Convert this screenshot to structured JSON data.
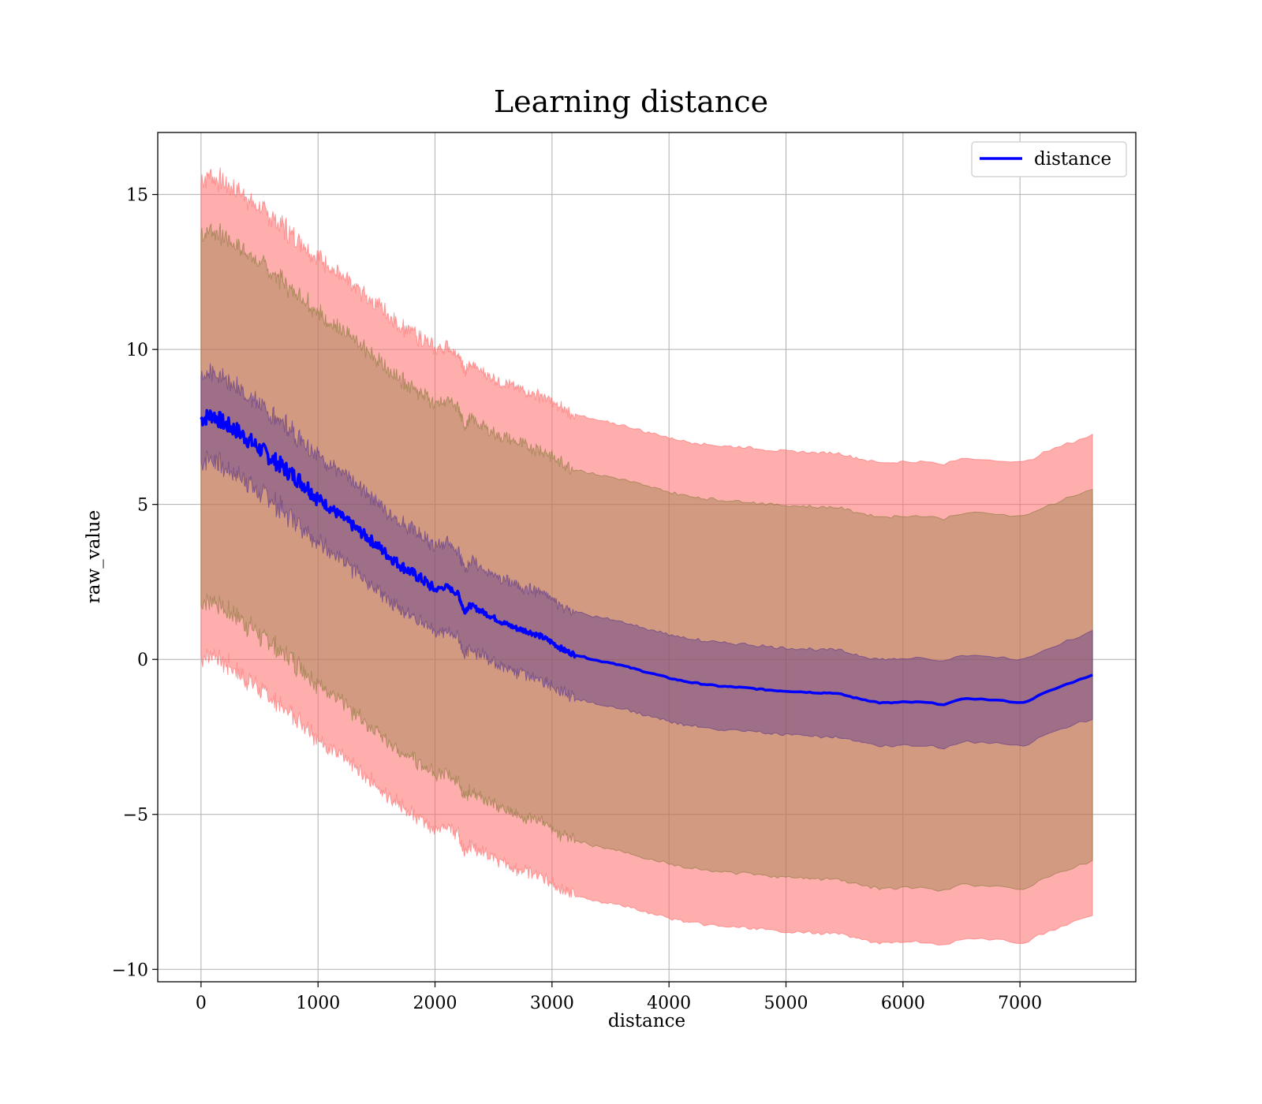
{
  "chart_data": {
    "type": "line",
    "title": "Learning distance",
    "xlabel": "distance",
    "ylabel": "raw_value",
    "xlim": [
      -370,
      7990
    ],
    "ylim": [
      -10.4,
      17.0
    ],
    "xticks": [
      0,
      1000,
      2000,
      3000,
      4000,
      5000,
      6000,
      7000
    ],
    "yticks": [
      -10,
      -5,
      0,
      5,
      10,
      15
    ],
    "xtick_labels": [
      "0",
      "1000",
      "2000",
      "3000",
      "4000",
      "5000",
      "6000",
      "7000"
    ],
    "ytick_labels": [
      "−10",
      "−5",
      "0",
      "5",
      "10",
      "15"
    ],
    "grid": true,
    "legend_position": "top-right",
    "series": [
      {
        "name": "distance",
        "color": "#0000ff",
        "x": [
          0,
          100,
          200,
          300,
          400,
          500,
          600,
          700,
          800,
          900,
          1000,
          1100,
          1200,
          1300,
          1400,
          1500,
          1600,
          1700,
          1800,
          1900,
          2000,
          2100,
          2200,
          2250,
          2300,
          2400,
          2500,
          2600,
          2700,
          2800,
          2900,
          3000,
          3100,
          3200,
          3300,
          3400,
          3500,
          3600,
          3700,
          3800,
          3900,
          4000,
          4100,
          4200,
          4300,
          4400,
          4500,
          4600,
          4700,
          4800,
          4900,
          5000,
          5100,
          5200,
          5300,
          5400,
          5500,
          5600,
          5700,
          5800,
          5900,
          6000,
          6150,
          6350,
          6550,
          6800,
          7030,
          7200,
          7400,
          7620
        ],
        "y": [
          7.75,
          7.9,
          7.6,
          7.4,
          7.1,
          6.8,
          6.5,
          6.2,
          5.9,
          5.6,
          5.2,
          4.9,
          4.6,
          4.3,
          4.0,
          3.7,
          3.35,
          3.05,
          2.8,
          2.55,
          2.25,
          2.35,
          2.1,
          1.55,
          1.75,
          1.55,
          1.35,
          1.15,
          1.0,
          0.9,
          0.75,
          0.55,
          0.3,
          0.15,
          0.05,
          -0.05,
          -0.1,
          -0.2,
          -0.3,
          -0.4,
          -0.5,
          -0.6,
          -0.68,
          -0.75,
          -0.8,
          -0.85,
          -0.88,
          -0.9,
          -0.93,
          -0.97,
          -1.0,
          -1.02,
          -1.04,
          -1.06,
          -1.08,
          -1.08,
          -1.15,
          -1.25,
          -1.32,
          -1.4,
          -1.4,
          -1.38,
          -1.38,
          -1.45,
          -1.25,
          -1.32,
          -1.4,
          -1.1,
          -0.8,
          -0.5
        ]
      }
    ],
    "bands": [
      {
        "color": "#ff6b6b",
        "opacity": 0.55,
        "lower_offset": -7.75,
        "upper_offset": 7.75
      },
      {
        "color": "#8b7a3a",
        "opacity": 0.38,
        "lower_offset": -6.0,
        "upper_offset": 6.0
      },
      {
        "color": "#5e3b8b",
        "opacity": 0.45,
        "lower_offset": -1.4,
        "upper_offset": 1.4
      }
    ]
  }
}
